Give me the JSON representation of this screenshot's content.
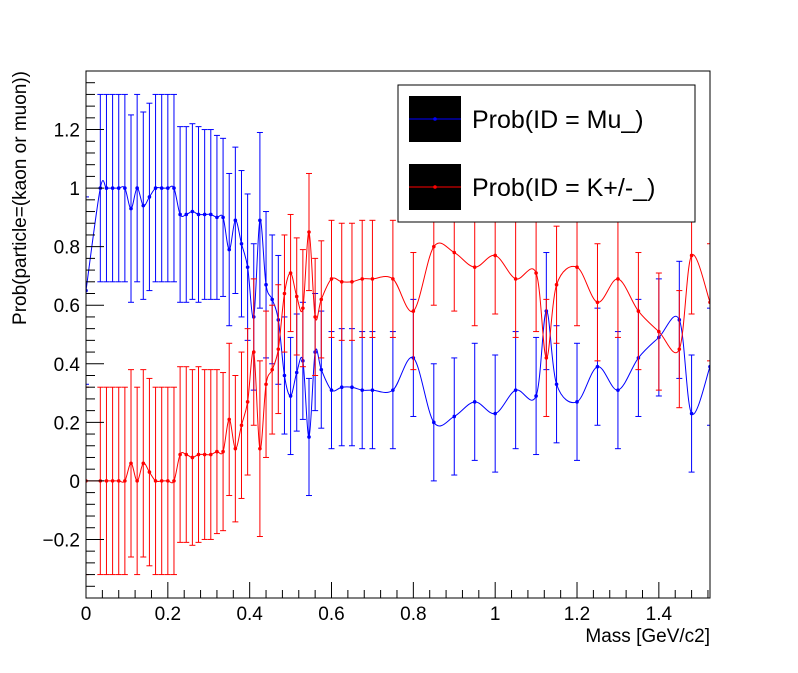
{
  "chart_data": {
    "type": "scatter",
    "title": "",
    "xlabel": "Mass [GeV/c2]",
    "ylabel": "Prob(particle=(kaon or muon))",
    "xlim": [
      0,
      1.525
    ],
    "ylim": [
      -0.4,
      1.4
    ],
    "xticks": [
      "0",
      "0.2",
      "0.4",
      "0.6",
      "0.8",
      "1",
      "1.2",
      "1.4"
    ],
    "yticks": [
      "−0.2",
      "0",
      "0.2",
      "0.4",
      "0.6",
      "0.8",
      "1",
      "1.2"
    ],
    "legend_position": "top-right",
    "series": [
      {
        "name": "Prob(ID = Mu_)",
        "color": "#0000ff",
        "x": [
          0.0,
          0.035,
          0.05,
          0.065,
          0.08,
          0.095,
          0.11,
          0.125,
          0.14,
          0.155,
          0.17,
          0.185,
          0.2,
          0.215,
          0.23,
          0.245,
          0.26,
          0.275,
          0.29,
          0.305,
          0.32,
          0.335,
          0.35,
          0.365,
          0.38,
          0.395,
          0.41,
          0.425,
          0.44,
          0.455,
          0.47,
          0.485,
          0.5,
          0.515,
          0.53,
          0.545,
          0.56,
          0.575,
          0.6,
          0.625,
          0.65,
          0.675,
          0.7,
          0.75,
          0.8,
          0.85,
          0.9,
          0.95,
          1.0,
          1.05,
          1.1,
          1.125,
          1.15,
          1.2,
          1.25,
          1.3,
          1.35,
          1.4,
          1.45,
          1.48,
          1.525
        ],
        "y": [
          0.65,
          1.0,
          1.0,
          1.0,
          1.0,
          1.0,
          0.93,
          1.0,
          0.94,
          0.97,
          1.0,
          1.0,
          1.0,
          1.0,
          0.91,
          0.91,
          0.92,
          0.91,
          0.91,
          0.91,
          0.9,
          0.9,
          0.79,
          0.89,
          0.81,
          0.73,
          0.56,
          0.89,
          0.67,
          0.62,
          0.55,
          0.36,
          0.29,
          0.37,
          0.41,
          0.15,
          0.44,
          0.38,
          0.31,
          0.32,
          0.32,
          0.31,
          0.31,
          0.31,
          0.42,
          0.2,
          0.22,
          0.27,
          0.23,
          0.31,
          0.29,
          0.58,
          0.33,
          0.27,
          0.39,
          0.31,
          0.42,
          0.49,
          0.55,
          0.23,
          0.39
        ],
        "error": [
          0.32,
          0.32,
          0.32,
          0.32,
          0.32,
          0.32,
          0.32,
          0.32,
          0.32,
          0.32,
          0.32,
          0.32,
          0.32,
          0.32,
          0.3,
          0.3,
          0.3,
          0.3,
          0.29,
          0.29,
          0.28,
          0.27,
          0.26,
          0.25,
          0.25,
          0.25,
          0.25,
          0.3,
          0.25,
          0.22,
          0.22,
          0.2,
          0.2,
          0.2,
          0.2,
          0.2,
          0.2,
          0.2,
          0.2,
          0.2,
          0.2,
          0.2,
          0.2,
          0.2,
          0.2,
          0.2,
          0.2,
          0.2,
          0.2,
          0.2,
          0.2,
          0.2,
          0.2,
          0.2,
          0.2,
          0.2,
          0.2,
          0.2,
          0.2,
          0.2,
          0.2
        ]
      },
      {
        "name": "Prob(ID = K+/-_)",
        "color": "#ff0000",
        "x": [
          0.0,
          0.035,
          0.05,
          0.065,
          0.08,
          0.095,
          0.11,
          0.125,
          0.14,
          0.155,
          0.17,
          0.185,
          0.2,
          0.215,
          0.23,
          0.245,
          0.26,
          0.275,
          0.29,
          0.305,
          0.32,
          0.335,
          0.35,
          0.365,
          0.38,
          0.395,
          0.41,
          0.425,
          0.44,
          0.455,
          0.47,
          0.485,
          0.5,
          0.515,
          0.53,
          0.545,
          0.56,
          0.575,
          0.6,
          0.625,
          0.65,
          0.675,
          0.7,
          0.75,
          0.8,
          0.85,
          0.9,
          0.95,
          1.0,
          1.05,
          1.1,
          1.125,
          1.15,
          1.2,
          1.25,
          1.3,
          1.35,
          1.4,
          1.45,
          1.48,
          1.525
        ],
        "y": [
          0.0,
          0.0,
          0.0,
          0.0,
          0.0,
          0.0,
          0.06,
          0.0,
          0.06,
          0.03,
          0.0,
          0.0,
          0.0,
          0.0,
          0.09,
          0.09,
          0.08,
          0.09,
          0.09,
          0.09,
          0.1,
          0.1,
          0.21,
          0.11,
          0.19,
          0.27,
          0.44,
          0.11,
          0.33,
          0.38,
          0.45,
          0.64,
          0.71,
          0.63,
          0.59,
          0.85,
          0.56,
          0.62,
          0.69,
          0.68,
          0.68,
          0.69,
          0.69,
          0.69,
          0.58,
          0.8,
          0.78,
          0.73,
          0.77,
          0.69,
          0.71,
          0.42,
          0.67,
          0.73,
          0.61,
          0.69,
          0.58,
          0.51,
          0.45,
          0.77,
          0.61
        ],
        "error": [
          0.32,
          0.32,
          0.32,
          0.32,
          0.32,
          0.32,
          0.32,
          0.32,
          0.32,
          0.32,
          0.32,
          0.32,
          0.32,
          0.32,
          0.3,
          0.3,
          0.3,
          0.3,
          0.29,
          0.29,
          0.28,
          0.27,
          0.26,
          0.25,
          0.25,
          0.25,
          0.25,
          0.3,
          0.25,
          0.22,
          0.22,
          0.2,
          0.2,
          0.2,
          0.2,
          0.2,
          0.2,
          0.2,
          0.2,
          0.2,
          0.2,
          0.2,
          0.2,
          0.2,
          0.2,
          0.2,
          0.2,
          0.2,
          0.2,
          0.2,
          0.2,
          0.2,
          0.2,
          0.2,
          0.2,
          0.2,
          0.2,
          0.2,
          0.2,
          0.2,
          0.2
        ]
      }
    ]
  }
}
